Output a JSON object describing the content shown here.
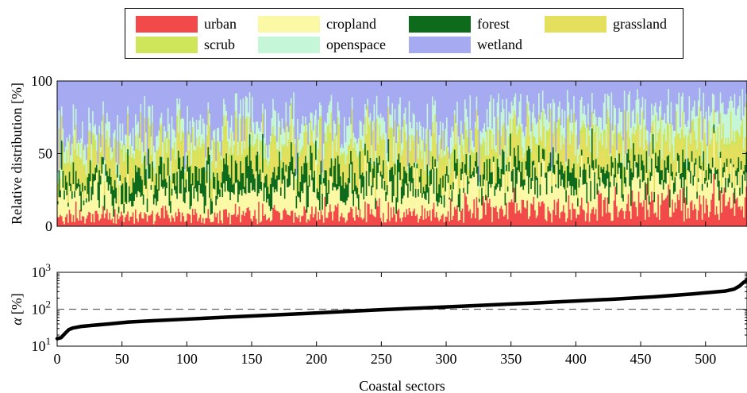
{
  "colors": {
    "urban": "#f24a4a",
    "cropland": "#fbf9a6",
    "forest": "#0e6b1c",
    "grassland": "#e5df5e",
    "scrub": "#cfe65a",
    "openspace": "#c6f6d8",
    "wetland": "#a6aaf1",
    "curve": "#000000",
    "reference_line": "#666666"
  },
  "chart_data": [
    {
      "type": "bar",
      "stacked": true,
      "ylabel": "Relative distribution [%]",
      "ylim": [
        0,
        100
      ],
      "yticks": [
        0,
        50,
        100
      ],
      "xlim": [
        0,
        532
      ],
      "xticks": [
        0,
        50,
        100,
        150,
        200,
        250,
        300,
        350,
        400,
        450,
        500
      ],
      "grid": false,
      "legend_position": "top",
      "legend_columns": 4,
      "series_order": [
        "urban",
        "cropland",
        "forest",
        "grassland",
        "scrub",
        "openspace",
        "wetland"
      ],
      "legend": [
        "urban",
        "cropland",
        "forest",
        "grassland",
        "scrub",
        "openspace",
        "wetland"
      ],
      "n_categories": 532,
      "share_profile": {
        "x": [
          0,
          50,
          100,
          150,
          200,
          250,
          300,
          350,
          400,
          450,
          500,
          532
        ],
        "urban": [
          7,
          7,
          8,
          8,
          9,
          9,
          10,
          12,
          12,
          14,
          16,
          18
        ],
        "cropland": [
          14,
          16,
          17,
          17,
          18,
          18,
          18,
          20,
          20,
          20,
          20,
          19
        ],
        "forest": [
          9,
          11,
          13,
          13,
          12,
          11,
          10,
          10,
          10,
          9,
          8,
          8
        ],
        "grassland": [
          12,
          13,
          14,
          14,
          14,
          14,
          14,
          14,
          15,
          15,
          15,
          15
        ],
        "scrub": [
          6,
          7,
          7,
          7,
          7,
          7,
          7,
          7,
          7,
          7,
          7,
          7
        ],
        "openspace": [
          9,
          11,
          12,
          12,
          13,
          13,
          14,
          14,
          14,
          15,
          15,
          15
        ],
        "wetland": [
          43,
          35,
          29,
          29,
          27,
          28,
          27,
          23,
          22,
          20,
          19,
          18
        ]
      }
    },
    {
      "type": "line",
      "xlabel": "Coastal sectors",
      "ylabel": "α [%]",
      "ylabel_symbol": "α",
      "ylabel_unit": "[%]",
      "yscale": "log",
      "ylim": [
        10,
        1000
      ],
      "yticks": [
        10,
        100,
        1000
      ],
      "ytick_base": "10",
      "ytick_exponents": [
        "1",
        "2",
        "3"
      ],
      "xlim": [
        0,
        532
      ],
      "xticks": [
        0,
        50,
        100,
        150,
        200,
        250,
        300,
        350,
        400,
        450,
        500
      ],
      "reference_line": {
        "y": 100,
        "style": "dashed"
      },
      "series": [
        {
          "x": [
            0,
            3,
            6,
            9,
            12,
            18,
            25,
            40,
            55,
            75,
            100,
            130,
            160,
            190,
            220,
            250,
            280,
            310,
            340,
            370,
            400,
            430,
            460,
            490,
            515,
            522,
            526,
            529,
            532
          ],
          "values": [
            16,
            17,
            22,
            28,
            31,
            34,
            36,
            40,
            45,
            49,
            54,
            61,
            68,
            76,
            86,
            97,
            108,
            120,
            134,
            149,
            167,
            188,
            217,
            260,
            310,
            350,
            420,
            520,
            620
          ]
        }
      ]
    }
  ]
}
